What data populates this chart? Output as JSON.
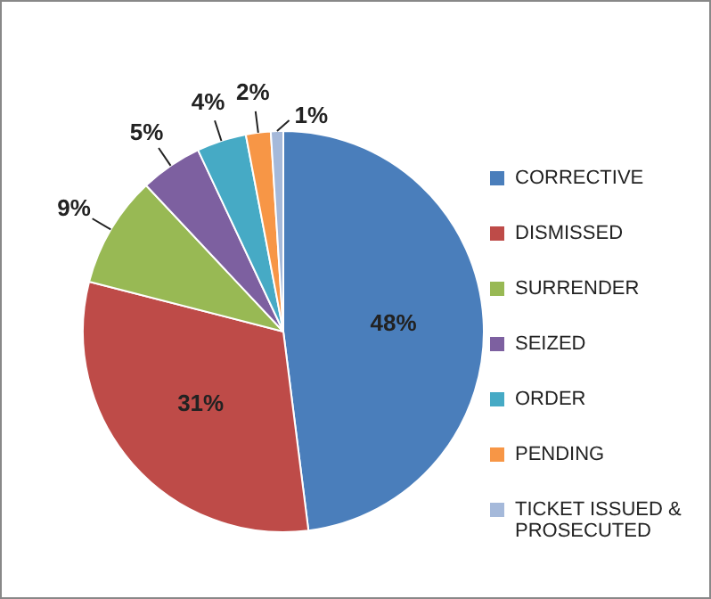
{
  "chart_data": {
    "type": "pie",
    "categories": [
      "CORRECTIVE",
      "DISMISSED",
      "SURRENDER",
      "SEIZED",
      "ORDER",
      "PENDING",
      "TICKET ISSUED & PROSECUTED"
    ],
    "values": [
      48,
      31,
      9,
      5,
      4,
      2,
      1
    ],
    "colors": [
      "#4a7ebb",
      "#be4b48",
      "#98b954",
      "#7d60a0",
      "#46aac5",
      "#f79646",
      "#a5b9da"
    ],
    "value_labels": [
      "48%",
      "31%",
      "9%",
      "5%",
      "4%",
      "2%",
      "1%"
    ],
    "legend": "right"
  }
}
